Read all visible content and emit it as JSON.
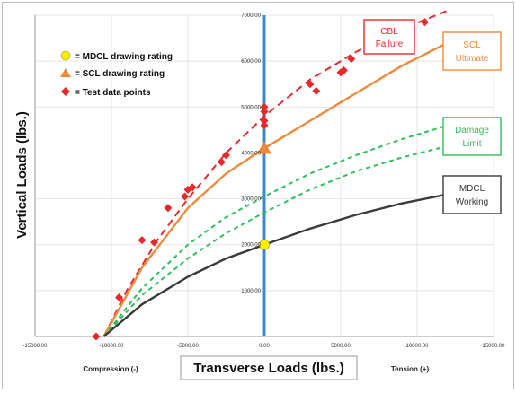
{
  "chart_data": {
    "type": "scatter",
    "title": "",
    "xlabel": "Transverse Loads (lbs.)",
    "ylabel": "Vertical Loads (lbs.)",
    "x_side_labels": {
      "left": "Compression (-)",
      "right": "Tension (+)"
    },
    "xlim": [
      -15000,
      15000
    ],
    "ylim": [
      0,
      7000
    ],
    "x_ticks": [
      -15000,
      -10000,
      -5000,
      0,
      5000,
      10000,
      15000
    ],
    "x_tick_labels": [
      "-15000.00",
      "-10000.00",
      "-5000.00",
      "0.00",
      "5000.00",
      "10000.00",
      "15000.00"
    ],
    "y_ticks": [
      1000,
      2000,
      3000,
      4000,
      5000,
      6000,
      7000
    ],
    "y_tick_labels": [
      "1000.00",
      "2000.00",
      "3000.00",
      "4000.00",
      "5000.00",
      "6000.00",
      "7000.00"
    ],
    "grid": true,
    "vertical_line_x": 0,
    "legend": {
      "placement": "top-left",
      "entries": [
        {
          "marker": "circle",
          "color": "#ffee00",
          "label": "= MDCL drawing rating"
        },
        {
          "marker": "triangle",
          "color": "#ef8a3c",
          "label": "= SCL drawing rating"
        },
        {
          "marker": "diamond",
          "color": "#e8282b",
          "label": "= Test data points"
        }
      ]
    },
    "curves": [
      {
        "name": "CBL Failure",
        "color": "#e8282b",
        "style": "dashed",
        "x": [
          -10500,
          -9000,
          -7000,
          -5000,
          -2500,
          0,
          3000,
          6000,
          9000,
          12000
        ],
        "y": [
          0,
          1000,
          2100,
          3000,
          4000,
          4800,
          5600,
          6200,
          6700,
          7100
        ]
      },
      {
        "name": "SCL Ultimate",
        "color": "#ef8a3c",
        "style": "solid",
        "x": [
          -10500,
          -8000,
          -5000,
          -2500,
          0,
          3000,
          6000,
          9000,
          12000
        ],
        "y": [
          0,
          1500,
          2800,
          3550,
          4100,
          4700,
          5300,
          5900,
          6400
        ]
      },
      {
        "name": "Damage Limit (upper)",
        "color": "#2fbf5a",
        "style": "dashed",
        "x": [
          -10500,
          -8000,
          -5000,
          -2500,
          0,
          3000,
          6000,
          9000,
          12000
        ],
        "y": [
          0,
          1050,
          2000,
          2600,
          3050,
          3550,
          3950,
          4300,
          4600
        ]
      },
      {
        "name": "Damage Limit (lower)",
        "color": "#2fbf5a",
        "style": "dashed",
        "x": [
          -10500,
          -8000,
          -5000,
          -2500,
          0,
          3000,
          6000,
          9000,
          12000
        ],
        "y": [
          0,
          900,
          1700,
          2250,
          2700,
          3200,
          3600,
          3900,
          4150
        ]
      },
      {
        "name": "MDCL Working",
        "color": "#3a3a3a",
        "style": "solid",
        "x": [
          -10500,
          -8000,
          -5000,
          -2500,
          0,
          3000,
          6000,
          9000,
          12000
        ],
        "y": [
          0,
          700,
          1300,
          1700,
          2000,
          2350,
          2650,
          2900,
          3100
        ]
      }
    ],
    "test_points": {
      "color": "#e8282b",
      "x": [
        -11000,
        -9500,
        -8000,
        -7200,
        -6300,
        -5200,
        -5000,
        -4700,
        -2800,
        -2500,
        0,
        0,
        0,
        0,
        0,
        3000,
        3400,
        5000,
        5200,
        5700,
        10500
      ],
      "y": [
        0,
        850,
        2100,
        2050,
        2800,
        3050,
        3200,
        3250,
        3800,
        3950,
        4050,
        4600,
        4700,
        4900,
        5000,
        5500,
        5350,
        5750,
        5800,
        6050,
        6850
      ]
    },
    "mdcl_rating": {
      "x": 0,
      "y": 2000,
      "color": "#ffee00"
    },
    "scl_rating": {
      "x": 0,
      "y": 4100,
      "color": "#ef8a3c"
    },
    "callouts": [
      {
        "lines": [
          "CBL",
          "Failure"
        ],
        "color": "#e8282b"
      },
      {
        "lines": [
          "SCL",
          "Ultimate"
        ],
        "color": "#ef8a3c"
      },
      {
        "lines": [
          "Damage",
          "Limit"
        ],
        "color": "#2fbf5a"
      },
      {
        "lines": [
          "MDCL",
          "Working"
        ],
        "color": "#3a3a3a"
      }
    ]
  }
}
